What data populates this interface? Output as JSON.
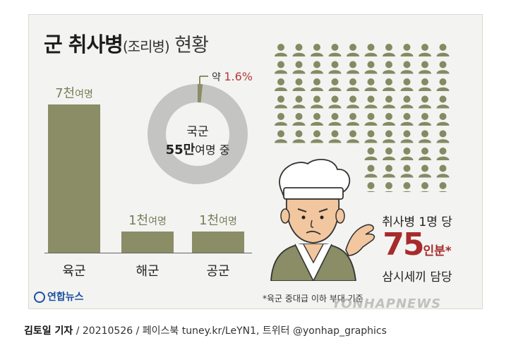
{
  "header": {
    "title_main": "군 취사병",
    "title_sub": "(조리병)",
    "title_tail": " 현황"
  },
  "chart_data": [
    {
      "type": "bar",
      "categories": [
        "육군",
        "해군",
        "공군"
      ],
      "values": [
        7000,
        1000,
        1000
      ],
      "value_labels": [
        {
          "num": "7천",
          "unit": "여명"
        },
        {
          "num": "1천",
          "unit": "여명"
        },
        {
          "num": "1천",
          "unit": "여명"
        }
      ],
      "ylim": [
        0,
        7000
      ],
      "color": "#8a8d65"
    },
    {
      "type": "pie",
      "center_line1": "국군",
      "center_num": "55만",
      "center_unit": "여명 중",
      "slice_value": 1.6,
      "callout_prefix": "약",
      "callout_value": "1.6%",
      "ring_color": "#c4c4c2",
      "slice_color": "#8a8d65"
    }
  ],
  "stat": {
    "line1": "취사병 1명 당",
    "big_num": "75",
    "big_unit": "인분*",
    "line3": "삼시세끼 담당",
    "color": "#a72b2b"
  },
  "pictogram": {
    "icon": "person-icon",
    "color": "#868a63",
    "rows_full": 6,
    "cols_full": 10,
    "rows_partial": 3,
    "cols_partial": 5
  },
  "footnote": "*육군 중대급 이하 부대 기준",
  "logo": "연합뉴스",
  "watermark": "YONHAPNEWS",
  "credit": {
    "author": "김토일 기자",
    "rest": " / 20210526 / 페이스북 tuney.kr/LeYN1, 트위터 @yonhap_graphics"
  }
}
